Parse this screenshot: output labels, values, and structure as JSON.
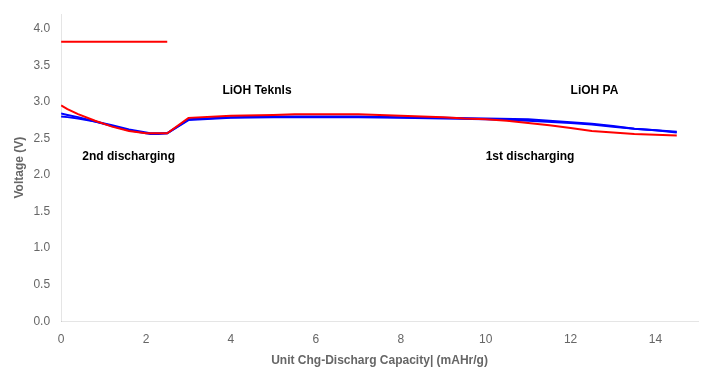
{
  "chart_data": {
    "type": "line",
    "xlabel": "Unit Chg-Discharg Capacity| (mAHr/g)",
    "ylabel": "Voltage (V)",
    "xlim": [
      0,
      15
    ],
    "ylim": [
      0.0,
      4.2
    ],
    "xticks": [
      0,
      2,
      4,
      6,
      8,
      10,
      12,
      14
    ],
    "yticks": [
      {
        "value": 0.0,
        "label": "0.0"
      },
      0.5,
      {
        "value": 1.0,
        "label": "1.0"
      },
      1.5,
      {
        "value": 2.0,
        "label": "2.0"
      },
      2.5,
      {
        "value": 3.0,
        "label": "3.0"
      },
      3.5,
      {
        "value": 4.0,
        "label": "4.0"
      }
    ],
    "grid": false,
    "series": [
      {
        "color": "#FF0000",
        "x": [
          0.0,
          2.5
        ],
        "values": [
          3.82,
          3.82
        ]
      },
      {
        "color": "#FF0000",
        "x": [
          0.0,
          0.15,
          0.4,
          0.8,
          1.2,
          1.6,
          2.0,
          2.1,
          2.3,
          2.5,
          3.0,
          4.0,
          5.0,
          5.5,
          6.0,
          6.5,
          7.0,
          7.5,
          8.0,
          8.5,
          9.0,
          9.5,
          10.0,
          10.5,
          11.0,
          11.5,
          12.0,
          12.5,
          13.0,
          13.5,
          14.0,
          14.5
        ],
        "values": [
          2.95,
          2.9,
          2.83,
          2.74,
          2.66,
          2.6,
          2.57,
          2.57,
          2.57,
          2.57,
          2.78,
          2.81,
          2.82,
          2.83,
          2.83,
          2.83,
          2.83,
          2.82,
          2.81,
          2.8,
          2.79,
          2.77,
          2.76,
          2.74,
          2.71,
          2.68,
          2.64,
          2.6,
          2.58,
          2.56,
          2.55,
          2.54
        ]
      },
      {
        "color": "#0000FF",
        "x": [
          0.0,
          0.15,
          0.4,
          0.8,
          1.2,
          1.6,
          2.0,
          2.1,
          2.3,
          2.5,
          3.0,
          4.0,
          5.0,
          6.0,
          7.0,
          8.0,
          9.0,
          10.0,
          11.0,
          12.0,
          12.5,
          13.0,
          13.5,
          14.0,
          14.5
        ],
        "values": [
          2.84,
          2.82,
          2.79,
          2.73,
          2.67,
          2.61,
          2.57,
          2.56,
          2.56,
          2.57,
          2.76,
          2.79,
          2.8,
          2.8,
          2.8,
          2.79,
          2.78,
          2.77,
          2.76,
          2.72,
          2.7,
          2.67,
          2.63,
          2.61,
          2.59
        ]
      },
      {
        "color": "#0000FF",
        "x": [
          0.0,
          0.15,
          0.4,
          0.8,
          1.2,
          1.6,
          2.0,
          2.1,
          2.3,
          2.5,
          3.0,
          4.0,
          5.0,
          6.0,
          7.0,
          8.0,
          9.0,
          10.0,
          11.0,
          12.0,
          12.5,
          13.0,
          13.5,
          14.0,
          14.5
        ],
        "values": [
          2.8,
          2.79,
          2.77,
          2.73,
          2.68,
          2.62,
          2.58,
          2.57,
          2.57,
          2.57,
          2.75,
          2.78,
          2.79,
          2.79,
          2.79,
          2.78,
          2.77,
          2.76,
          2.74,
          2.71,
          2.69,
          2.66,
          2.63,
          2.61,
          2.58
        ]
      }
    ],
    "annotations": [
      {
        "text": "LiOH Teknls",
        "x": 3.8,
        "y": 3.1
      },
      {
        "text": "LiOH PA",
        "x": 12.0,
        "y": 3.1
      },
      {
        "text": "2nd discharging",
        "x": 0.5,
        "y": 2.2
      },
      {
        "text": "1st discharging",
        "x": 10.0,
        "y": 2.2
      }
    ]
  }
}
